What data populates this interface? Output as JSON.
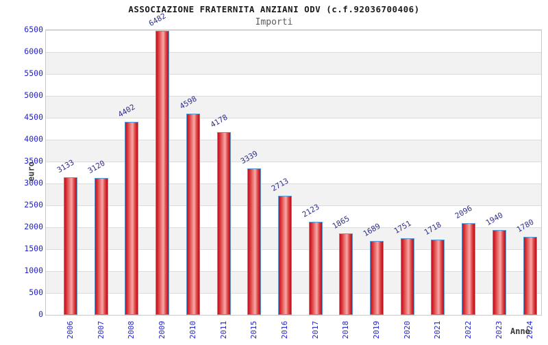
{
  "chart_data": {
    "type": "bar",
    "title": "ASSOCIAZIONE FRATERNITA ANZIANI ODV (c.f.92036700406)",
    "subtitle": "Importi",
    "xlabel": "Anno",
    "ylabel": "euro",
    "categories": [
      "2006",
      "2007",
      "2008",
      "2009",
      "2010",
      "2011",
      "2015",
      "2016",
      "2017",
      "2018",
      "2019",
      "2020",
      "2021",
      "2022",
      "2023",
      "2024"
    ],
    "values": [
      3133,
      3120,
      4402,
      6482,
      4598,
      4178,
      3339,
      2713,
      2123,
      1865,
      1689,
      1751,
      1718,
      2096,
      1940,
      1780
    ],
    "ylim": [
      0,
      6500
    ],
    "ytick_step": 500,
    "grid": "horizontal-bands",
    "legend": "none",
    "colors": {
      "band_white": "#ffffff",
      "band_gray": "#f2f2f2",
      "gridline": "#dcdcdc",
      "frame": "#c8c8c8",
      "bar_border": "#5b9bd5",
      "bar_edge_dark": "#c01020",
      "bar_mid": "#ef8585",
      "bar_highlight": "#f8a8a8",
      "bar_right_dark": "#b80d18",
      "tick_label": "#2222cc",
      "value_label": "#30308c",
      "title": "#1a1a1a",
      "subtitle": "#5a5a5a",
      "axis_name": "#3a3a3a"
    }
  }
}
